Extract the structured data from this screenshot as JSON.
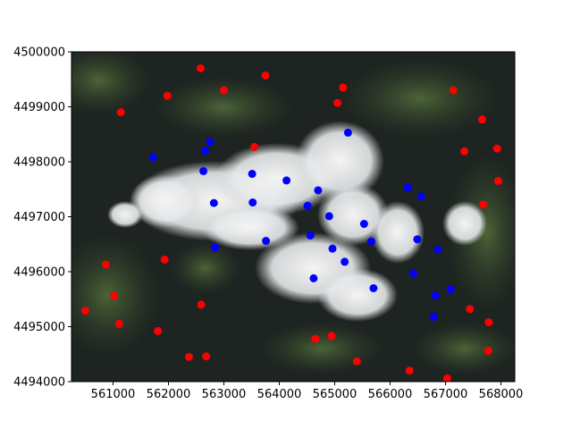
{
  "chart_data": {
    "type": "scatter",
    "title": "",
    "xlabel": "",
    "ylabel": "",
    "xlim": [
      560250,
      568250
    ],
    "ylim": [
      4494000,
      4500000
    ],
    "xticks": [
      561000,
      562000,
      563000,
      564000,
      565000,
      566000,
      567000,
      568000
    ],
    "yticks": [
      4494000,
      4495000,
      4496000,
      4497000,
      4498000,
      4499000,
      4500000
    ],
    "xtick_labels": [
      "561000",
      "562000",
      "563000",
      "564000",
      "565000",
      "566000",
      "567000",
      "568000"
    ],
    "ytick_labels": [
      "4494000",
      "4495000",
      "4496000",
      "4497000",
      "4498000",
      "4499000",
      "4500000"
    ],
    "grid": false,
    "background": "satellite imagery (green/dark terrain with white clouds in center)",
    "series": [
      {
        "color": "#ff0000",
        "points": [
          [
            562580,
            4499700
          ],
          [
            561980,
            4499200
          ],
          [
            563000,
            4499300
          ],
          [
            563750,
            4499570
          ],
          [
            561140,
            4498900
          ],
          [
            565150,
            4499350
          ],
          [
            565050,
            4499070
          ],
          [
            567140,
            4499300
          ],
          [
            567660,
            4498770
          ],
          [
            563550,
            4498270
          ],
          [
            567340,
            4498190
          ],
          [
            567930,
            4498240
          ],
          [
            567950,
            4497650
          ],
          [
            567680,
            4497220
          ],
          [
            560870,
            4496130
          ],
          [
            561930,
            4496220
          ],
          [
            561020,
            4495560
          ],
          [
            562590,
            4495400
          ],
          [
            560500,
            4495290
          ],
          [
            561110,
            4495050
          ],
          [
            561810,
            4494920
          ],
          [
            567440,
            4495320
          ],
          [
            567780,
            4495080
          ],
          [
            567770,
            4494560
          ],
          [
            564650,
            4494780
          ],
          [
            564940,
            4494830
          ],
          [
            565400,
            4494370
          ],
          [
            562370,
            4494450
          ],
          [
            562680,
            4494460
          ],
          [
            566350,
            4494200
          ],
          [
            567030,
            4494060
          ]
        ]
      },
      {
        "color": "#0000ff",
        "points": [
          [
            561720,
            4498080
          ],
          [
            562750,
            4498360
          ],
          [
            562660,
            4498200
          ],
          [
            565240,
            4498530
          ],
          [
            562630,
            4497830
          ],
          [
            563510,
            4497780
          ],
          [
            564130,
            4497660
          ],
          [
            564700,
            4497480
          ],
          [
            566320,
            4497530
          ],
          [
            566560,
            4497370
          ],
          [
            562820,
            4497250
          ],
          [
            563520,
            4497260
          ],
          [
            564510,
            4497200
          ],
          [
            564900,
            4497010
          ],
          [
            565530,
            4496870
          ],
          [
            564560,
            4496660
          ],
          [
            563760,
            4496560
          ],
          [
            565660,
            4496550
          ],
          [
            566490,
            4496590
          ],
          [
            562840,
            4496440
          ],
          [
            564960,
            4496420
          ],
          [
            566860,
            4496400
          ],
          [
            565180,
            4496180
          ],
          [
            566420,
            4495970
          ],
          [
            564620,
            4495880
          ],
          [
            565700,
            4495700
          ],
          [
            567090,
            4495680
          ],
          [
            566820,
            4495570
          ],
          [
            566790,
            4495180
          ]
        ]
      }
    ]
  }
}
